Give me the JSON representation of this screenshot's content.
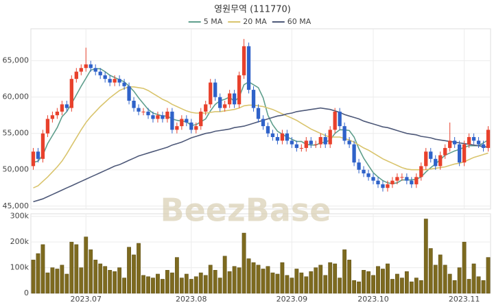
{
  "chart_data": [
    {
      "type": "candlestick",
      "title": "영원무역 (111770)",
      "watermark": "BeezBase",
      "up_color": "#e8412c",
      "down_color": "#2f62c9",
      "open": [
        50500,
        52500,
        51500,
        55000,
        57000,
        57500,
        58000,
        59000,
        58500,
        62500,
        63500,
        64000,
        64500,
        64000,
        63500,
        63000,
        62500,
        62000,
        62500,
        62000,
        61500,
        59500,
        58500,
        58000,
        58000,
        57500,
        57000,
        57500,
        57000,
        58000,
        55500,
        56000,
        57000,
        56500,
        55500,
        56000,
        58000,
        59000,
        62000,
        60000,
        58500,
        59000,
        60500,
        59000,
        63000,
        67000,
        61000,
        58500,
        57000,
        56000,
        55000,
        54500,
        54000,
        55000,
        54000,
        53500,
        53000,
        53000,
        54000,
        53500,
        53500,
        54500,
        53500,
        55500,
        58000,
        56000,
        54000,
        53500,
        51000,
        50000,
        49500,
        49000,
        48500,
        48000,
        47500,
        48000,
        48500,
        49000,
        49000,
        48500,
        48000,
        49000,
        50500,
        52500,
        51500,
        50500,
        52000,
        53000,
        54000,
        53500,
        51000,
        53500,
        54500,
        54000,
        53500,
        53000
      ],
      "high": [
        53000,
        53000,
        55500,
        57500,
        58000,
        58500,
        59500,
        59500,
        63000,
        64000,
        64500,
        66800,
        65000,
        64500,
        64000,
        63500,
        63000,
        63000,
        63000,
        62500,
        62000,
        60000,
        59000,
        58500,
        58500,
        58000,
        58000,
        58000,
        58500,
        58500,
        56500,
        57500,
        57500,
        57000,
        56500,
        58500,
        59500,
        62500,
        62500,
        60500,
        59500,
        61000,
        61000,
        63500,
        68000,
        67500,
        61500,
        59000,
        57500,
        56500,
        55500,
        55000,
        55500,
        55500,
        54500,
        54000,
        53500,
        54500,
        54500,
        54000,
        55000,
        55000,
        56000,
        58500,
        58500,
        56500,
        54500,
        54000,
        51500,
        50500,
        50000,
        49500,
        49000,
        48500,
        48500,
        49000,
        49500,
        49500,
        49500,
        49000,
        49500,
        51000,
        53000,
        53000,
        52000,
        52500,
        53500,
        56500,
        54500,
        54000,
        54000,
        55000,
        55000,
        54500,
        54000,
        56000
      ],
      "low": [
        50000,
        51000,
        51000,
        54500,
        56500,
        57000,
        57500,
        58000,
        58000,
        62000,
        63000,
        63500,
        63500,
        63000,
        62500,
        62000,
        61500,
        61500,
        61500,
        61000,
        59000,
        58000,
        57500,
        57500,
        57000,
        56500,
        56500,
        56500,
        56500,
        55000,
        55000,
        55500,
        56000,
        55000,
        55000,
        55500,
        57500,
        58500,
        59500,
        58000,
        58000,
        58500,
        58500,
        58500,
        62500,
        60500,
        58000,
        56500,
        55500,
        54500,
        54000,
        53500,
        53500,
        53500,
        53000,
        52500,
        52500,
        52500,
        53000,
        53000,
        53000,
        53000,
        53000,
        55000,
        55500,
        53500,
        53000,
        50500,
        49500,
        49000,
        48500,
        48000,
        47500,
        47000,
        47000,
        47500,
        48000,
        48500,
        48000,
        47500,
        47500,
        48500,
        50000,
        51000,
        50000,
        50000,
        51500,
        52500,
        53000,
        50500,
        50500,
        53000,
        53500,
        53000,
        52500,
        52500
      ],
      "close": [
        52500,
        51500,
        55000,
        57000,
        57500,
        58000,
        59000,
        58500,
        62500,
        63500,
        64000,
        64500,
        64000,
        63500,
        63000,
        62500,
        62000,
        62500,
        62000,
        61500,
        59500,
        58500,
        58000,
        58000,
        57500,
        57000,
        57500,
        57000,
        58000,
        55500,
        56000,
        57000,
        56500,
        55500,
        56000,
        58000,
        59000,
        62000,
        60000,
        58500,
        59000,
        60500,
        59000,
        63000,
        67000,
        61000,
        58500,
        57000,
        56000,
        55000,
        54500,
        54000,
        55000,
        54000,
        53500,
        53000,
        53000,
        54000,
        53500,
        53500,
        54500,
        53500,
        55500,
        58000,
        56000,
        54000,
        53500,
        51000,
        50000,
        49500,
        49000,
        48500,
        48000,
        47500,
        48000,
        48500,
        49000,
        49000,
        48500,
        48000,
        49000,
        50500,
        52500,
        51500,
        50500,
        52000,
        53000,
        54000,
        53500,
        51000,
        53500,
        54500,
        54000,
        53500,
        53000,
        55500
      ],
      "series": [
        {
          "name": "5 MA",
          "color": "#5e9e8c",
          "values": [
            51000,
            51200,
            52000,
            53600,
            54700,
            55800,
            57300,
            58000,
            59100,
            60300,
            61500,
            62600,
            63700,
            63900,
            63900,
            63500,
            63000,
            62700,
            62400,
            62100,
            61500,
            60800,
            59900,
            59100,
            58300,
            57800,
            57600,
            57400,
            57400,
            57000,
            56800,
            56700,
            56600,
            56100,
            56200,
            56600,
            57000,
            58100,
            59000,
            59500,
            59700,
            60000,
            59400,
            60000,
            61700,
            62100,
            61700,
            61300,
            59900,
            57500,
            56200,
            55300,
            54900,
            54500,
            54200,
            53900,
            53900,
            53500,
            53400,
            53400,
            53700,
            53800,
            54100,
            55000,
            55500,
            55500,
            55400,
            54500,
            52900,
            51600,
            50600,
            49600,
            49000,
            48500,
            48200,
            48100,
            48200,
            48600,
            48600,
            48600,
            48700,
            49000,
            49700,
            50300,
            50800,
            51400,
            52000,
            52300,
            52600,
            52800,
            53100,
            53300,
            53300,
            53300,
            53700,
            54100
          ]
        },
        {
          "name": "20 MA",
          "color": "#d9c46c",
          "values": [
            47500,
            47800,
            48400,
            49000,
            49700,
            50400,
            51200,
            52200,
            53300,
            54400,
            55500,
            56500,
            57300,
            58000,
            58700,
            59300,
            59900,
            60400,
            60900,
            61200,
            61400,
            61400,
            61300,
            61200,
            60900,
            60500,
            60100,
            59700,
            59400,
            59000,
            58700,
            58400,
            58100,
            57900,
            57800,
            57800,
            57800,
            57900,
            58000,
            58000,
            58100,
            58200,
            58300,
            58500,
            58800,
            58900,
            58900,
            58800,
            58700,
            58500,
            58300,
            58000,
            57700,
            57400,
            57100,
            56800,
            56400,
            56000,
            55600,
            55300,
            55000,
            54700,
            54500,
            54500,
            54500,
            54300,
            54100,
            53800,
            53400,
            53000,
            52700,
            52300,
            51900,
            51500,
            51200,
            50900,
            50600,
            50300,
            50100,
            50000,
            50000,
            50000,
            50000,
            50100,
            50200,
            50300,
            50400,
            50600,
            50800,
            50900,
            51100,
            51400,
            51700,
            51900,
            52100,
            52300
          ]
        },
        {
          "name": "60 MA",
          "color": "#4d5878",
          "values": [
            45600,
            45800,
            46000,
            46300,
            46600,
            46900,
            47200,
            47500,
            47800,
            48100,
            48400,
            48700,
            49000,
            49300,
            49600,
            49900,
            50200,
            50500,
            50700,
            51000,
            51300,
            51600,
            51900,
            52100,
            52300,
            52500,
            52700,
            52900,
            53100,
            53400,
            53600,
            53800,
            54100,
            54400,
            54600,
            54800,
            55000,
            55100,
            55300,
            55400,
            55500,
            55600,
            55800,
            55900,
            56000,
            56200,
            56400,
            56600,
            56800,
            57000,
            57200,
            57400,
            57500,
            57700,
            57800,
            58000,
            58100,
            58200,
            58300,
            58400,
            58500,
            58400,
            58300,
            58100,
            57900,
            57600,
            57400,
            57200,
            57000,
            56700,
            56500,
            56300,
            56100,
            55900,
            55800,
            55600,
            55400,
            55200,
            55000,
            54900,
            54800,
            54600,
            54500,
            54400,
            54200,
            54100,
            54000,
            53900,
            53800,
            53700,
            53600,
            53500,
            53400,
            53300,
            53200,
            53100
          ]
        }
      ],
      "ylim": [
        44600,
        69400
      ],
      "yticks": [
        {
          "value": 45000,
          "label": "45,000"
        },
        {
          "value": 50000,
          "label": "50,000"
        },
        {
          "value": 55000,
          "label": "55,000"
        },
        {
          "value": 60000,
          "label": "60,000"
        },
        {
          "value": 65000,
          "label": "65,000"
        }
      ],
      "grid": true
    },
    {
      "type": "bar",
      "color": "#7d6a1f",
      "categories": [
        null,
        null,
        null,
        null,
        null,
        null,
        null,
        null,
        null,
        null,
        null,
        "2023.07",
        null,
        null,
        null,
        null,
        null,
        null,
        null,
        null,
        null,
        null,
        null,
        null,
        null,
        null,
        null,
        null,
        null,
        null,
        null,
        null,
        null,
        "2023.08",
        null,
        null,
        null,
        null,
        null,
        null,
        null,
        null,
        null,
        null,
        null,
        null,
        null,
        null,
        null,
        null,
        null,
        null,
        null,
        null,
        "2023.09",
        null,
        null,
        null,
        null,
        null,
        null,
        null,
        null,
        null,
        null,
        null,
        null,
        null,
        null,
        null,
        null,
        "2023.10",
        null,
        null,
        null,
        null,
        null,
        null,
        null,
        null,
        null,
        null,
        null,
        null,
        null,
        null,
        null,
        null,
        null,
        null,
        "2023.11",
        null,
        null,
        null,
        null,
        null
      ],
      "values": [
        130000,
        155000,
        190000,
        80000,
        100000,
        95000,
        110000,
        75000,
        200000,
        190000,
        100000,
        220000,
        170000,
        130000,
        115000,
        105000,
        90000,
        85000,
        100000,
        60000,
        180000,
        150000,
        195000,
        70000,
        65000,
        60000,
        75000,
        55000,
        90000,
        80000,
        140000,
        60000,
        75000,
        55000,
        65000,
        80000,
        70000,
        110000,
        90000,
        60000,
        145000,
        85000,
        105000,
        100000,
        235000,
        135000,
        120000,
        110000,
        95000,
        105000,
        80000,
        75000,
        120000,
        70000,
        60000,
        95000,
        80000,
        65000,
        85000,
        100000,
        110000,
        70000,
        120000,
        115000,
        60000,
        170000,
        130000,
        50000,
        45000,
        90000,
        85000,
        70000,
        105000,
        95000,
        115000,
        55000,
        75000,
        60000,
        85000,
        45000,
        60000,
        50000,
        290000,
        175000,
        110000,
        150000,
        110000,
        75000,
        50000,
        100000,
        200000,
        55000,
        115000,
        65000,
        50000,
        140000
      ],
      "ylim": [
        0,
        310000
      ],
      "yticks": [
        0,
        {
          "value": 100000,
          "label": "100k"
        },
        {
          "value": 200000,
          "label": "200k"
        },
        {
          "value": 300000,
          "label": "300k"
        }
      ],
      "grid": true
    }
  ]
}
